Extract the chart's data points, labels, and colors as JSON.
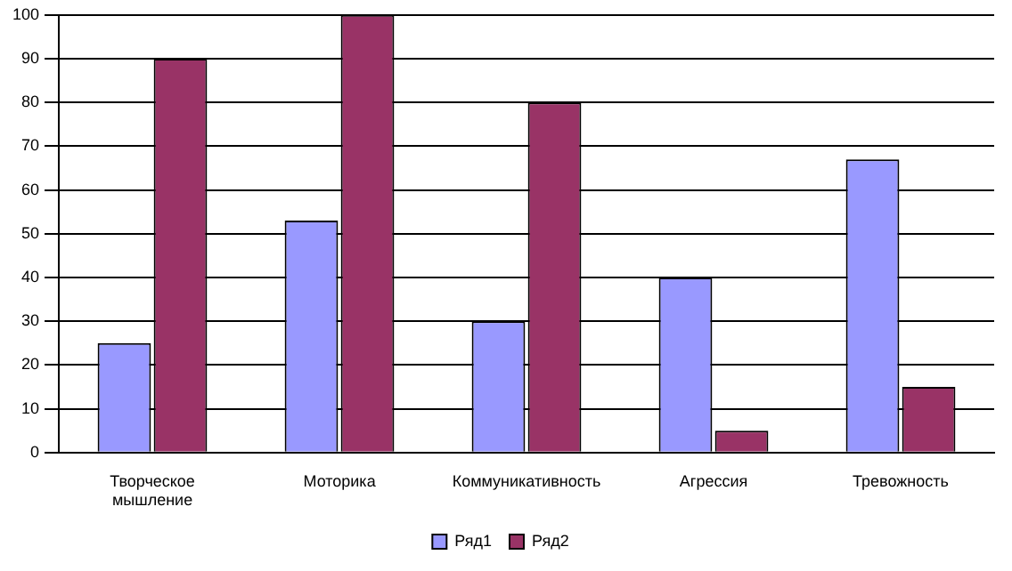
{
  "chart_data": {
    "type": "bar",
    "categories": [
      "Творческое мышление",
      "Моторика",
      "Коммуникативность",
      "Агрессия",
      "Тревожность"
    ],
    "series": [
      {
        "name": "Ряд1",
        "color": "#9999ff",
        "values": [
          25,
          53,
          30,
          40,
          67
        ]
      },
      {
        "name": "Ряд2",
        "color": "#993366",
        "values": [
          90,
          100,
          80,
          5,
          15
        ]
      }
    ],
    "ylim": [
      0,
      100
    ],
    "yticks": [
      0,
      10,
      20,
      30,
      40,
      50,
      60,
      70,
      80,
      90,
      100
    ],
    "grid": "y",
    "legend": "bottom"
  }
}
